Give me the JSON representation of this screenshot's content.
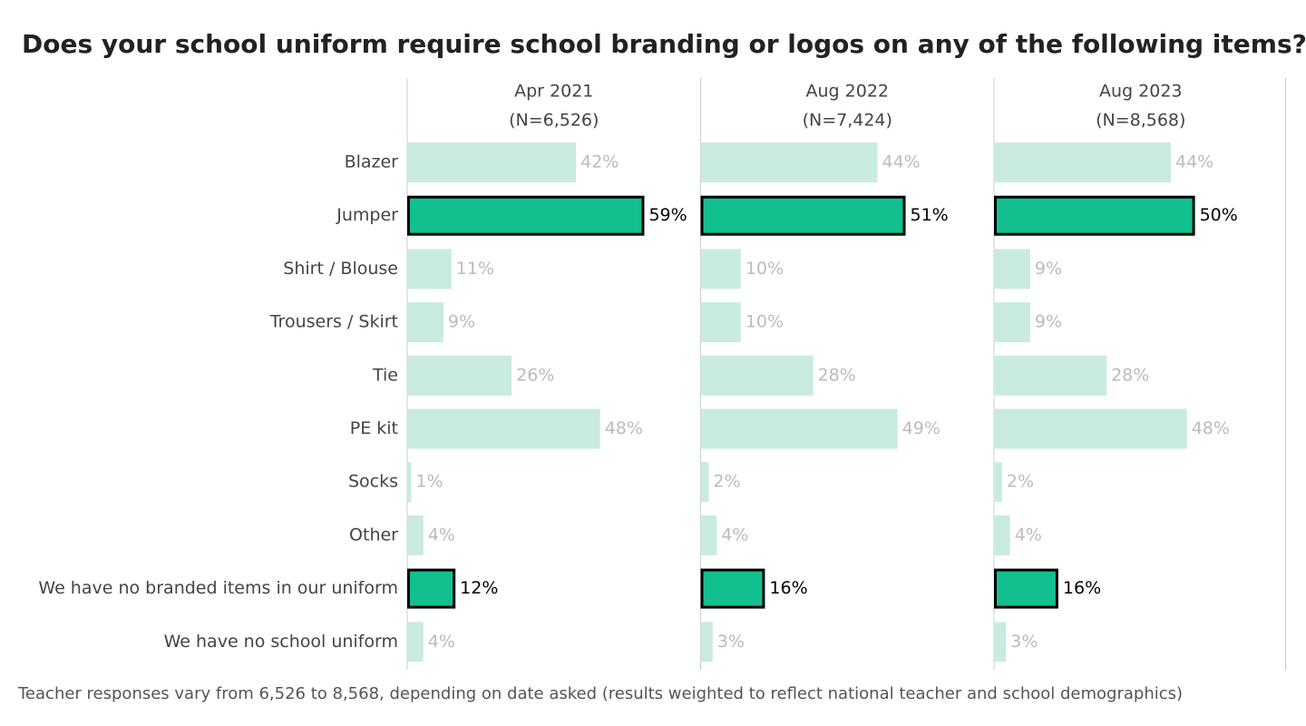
{
  "chart_data": {
    "type": "bar",
    "layout": "small-multiples",
    "title": "Does your school uniform require school branding or logos on any of the following items?",
    "note": "Teacher responses vary from 6,526 to 8,568, depending on date asked (results weighted to reflect national teacher and school demographics)",
    "categories": [
      "Blazer",
      "Jumper",
      "Shirt / Blouse",
      "Trousers / Skirt",
      "Tie",
      "PE kit",
      "Socks",
      "Other",
      "We have no branded items in our uniform",
      "We have no school uniform"
    ],
    "color": "#c9ebe0",
    "highlight_color": "#12bf8f",
    "highlight": [
      1,
      8
    ],
    "xlim": [
      0,
      73
    ],
    "series": [
      {
        "name": "Apr 2021",
        "subtitle": "(N=6,526)",
        "values": [
          42,
          59,
          11,
          9,
          26,
          48,
          1,
          4,
          12,
          4
        ],
        "value_labels": [
          "42%",
          "59%",
          "11%",
          "9%",
          "26%",
          "48%",
          "1%",
          "4%",
          "12%",
          "4%"
        ]
      },
      {
        "name": "Aug 2022",
        "subtitle": "(N=7,424)",
        "values": [
          44,
          51,
          10,
          10,
          28,
          49,
          2,
          4,
          16,
          3
        ],
        "value_labels": [
          "44%",
          "51%",
          "10%",
          "10%",
          "28%",
          "49%",
          "2%",
          "4%",
          "16%",
          "3%"
        ]
      },
      {
        "name": "Aug 2023",
        "subtitle": "(N=8,568)",
        "values": [
          44,
          50,
          9,
          9,
          28,
          48,
          2,
          4,
          16,
          3
        ],
        "value_labels": [
          "44%",
          "50%",
          "9%",
          "9%",
          "28%",
          "48%",
          "2%",
          "4%",
          "16%",
          "3%"
        ]
      }
    ]
  }
}
